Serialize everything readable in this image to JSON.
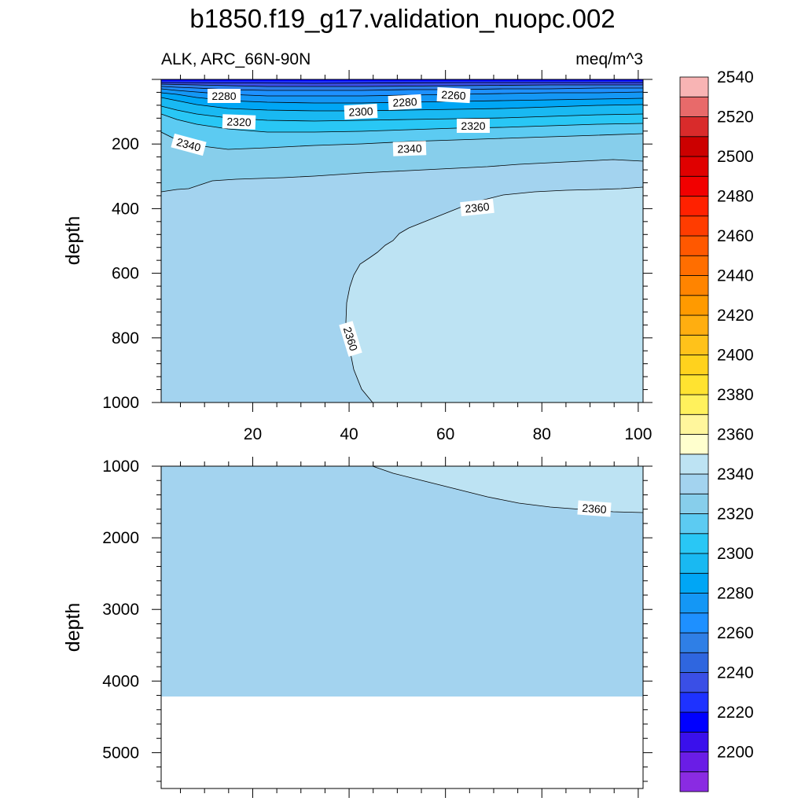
{
  "title": "b1850.f19_g17.validation_nuopc.002",
  "chart_data": {
    "type": "contour",
    "variable_label": "ALK, ARC_66N-90N",
    "units": "meq/m^3",
    "x_ticks": [
      "20",
      "40",
      "60",
      "80",
      "100"
    ],
    "x_range": [
      1,
      101
    ],
    "panels": [
      {
        "name": "upper",
        "ylabel": "depth",
        "y_range": [
          0,
          1000
        ],
        "y_ticks": [
          "200",
          "400",
          "600",
          "800",
          "1000"
        ],
        "contour_labels": [
          "2260",
          "2280",
          "2280",
          "2300",
          "2320",
          "2320",
          "2340",
          "2340",
          "2360",
          "2360"
        ]
      },
      {
        "name": "lower",
        "ylabel": "depth",
        "y_range": [
          1000,
          5500
        ],
        "y_ticks": [
          "1000",
          "2000",
          "3000",
          "4000",
          "5000"
        ],
        "seafloor_depth": 4120,
        "contour_labels": [
          "2360"
        ]
      }
    ],
    "colorbar": {
      "labels": [
        "2200",
        "2220",
        "2240",
        "2260",
        "2280",
        "2300",
        "2320",
        "2340",
        "2360",
        "2380",
        "2400",
        "2420",
        "2440",
        "2460",
        "2480",
        "2500",
        "2520",
        "2540"
      ],
      "colors": [
        "#8a2be2",
        "#6a1de6",
        "#3a10ec",
        "#0000ff",
        "#1e32ff",
        "#3a4fe6",
        "#2f66df",
        "#2f7fe6",
        "#1e90ff",
        "#1497f5",
        "#00a6f5",
        "#19b9f2",
        "#29c7f5",
        "#5ccbf2",
        "#87ceeb",
        "#a3d3ef",
        "#bde3f3",
        "#ffffce",
        "#fff69c",
        "#fff15c",
        "#ffe330",
        "#ffd21d",
        "#ffc21a",
        "#ffae10",
        "#ff9a00",
        "#ff8400",
        "#ff6e00",
        "#ff5800",
        "#ff3c00",
        "#ff2100",
        "#f20000",
        "#e00000",
        "#cc0000",
        "#d92b2b",
        "#e86a6a",
        "#f8b4b4"
      ]
    },
    "grid": false
  }
}
